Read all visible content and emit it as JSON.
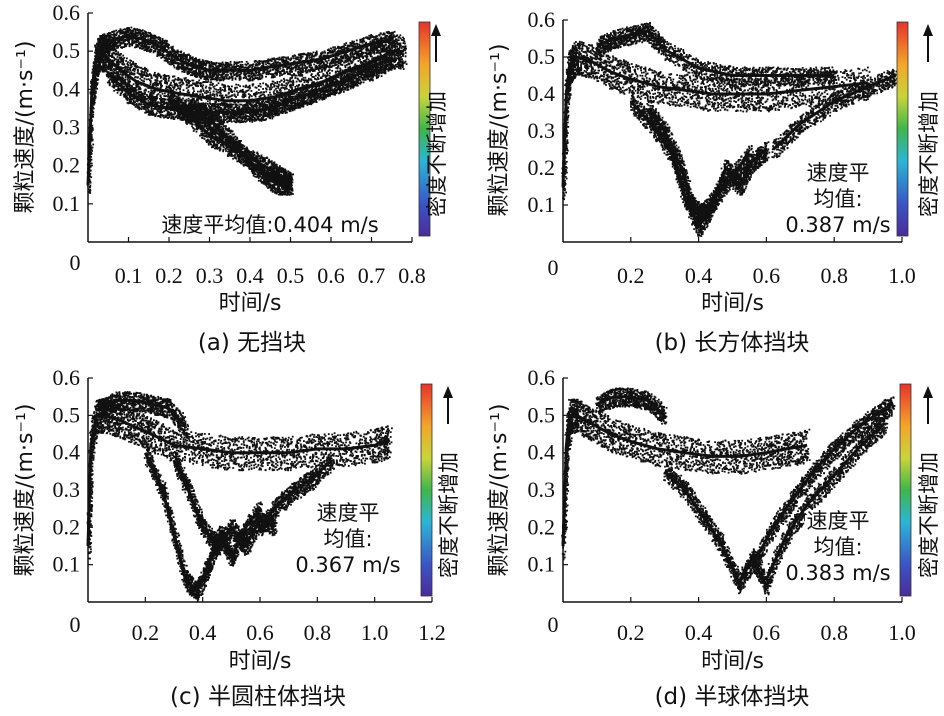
{
  "chart_data": [
    {
      "type": "scatter",
      "caption": "(a) 无挡块",
      "xlabel": "时间/s",
      "ylabel": "颗粒速度/(m·s⁻¹)",
      "xlim": [
        0,
        0.8
      ],
      "ylim": [
        0,
        0.6
      ],
      "xticks": [
        "0.1",
        "0.2",
        "0.3",
        "0.4",
        "0.5",
        "0.6",
        "0.7",
        "0.8"
      ],
      "yticks": [
        "0.1",
        "0.2",
        "0.3",
        "0.4",
        "0.5",
        "0.6"
      ],
      "origin_label": "0",
      "annotation": [
        "速度平均值:0.404 m/s"
      ],
      "colorbar_label": "密度不断增加",
      "series": [
        {
          "name": "main band",
          "x": [
            0.0,
            0.01,
            0.02,
            0.03,
            0.05,
            0.08,
            0.12,
            0.17,
            0.22,
            0.28,
            0.34,
            0.4,
            0.46,
            0.52,
            0.58,
            0.64,
            0.7,
            0.75,
            0.78
          ],
          "y": [
            0.15,
            0.4,
            0.48,
            0.5,
            0.48,
            0.45,
            0.42,
            0.4,
            0.39,
            0.38,
            0.37,
            0.37,
            0.38,
            0.4,
            0.42,
            0.45,
            0.47,
            0.5,
            0.5
          ]
        },
        {
          "name": "upper band",
          "x": [
            0.03,
            0.06,
            0.1,
            0.14,
            0.18,
            0.22,
            0.26,
            0.3,
            0.34,
            0.4,
            0.46,
            0.52,
            0.58,
            0.64,
            0.7,
            0.75
          ],
          "y": [
            0.52,
            0.53,
            0.54,
            0.53,
            0.51,
            0.48,
            0.46,
            0.45,
            0.45,
            0.45,
            0.46,
            0.47,
            0.48,
            0.5,
            0.52,
            0.53
          ]
        },
        {
          "name": "lower band",
          "x": [
            0.05,
            0.1,
            0.15,
            0.2,
            0.25,
            0.3,
            0.35,
            0.4,
            0.45,
            0.5,
            0.55,
            0.6,
            0.65,
            0.7,
            0.75
          ],
          "y": [
            0.44,
            0.39,
            0.36,
            0.35,
            0.34,
            0.34,
            0.34,
            0.34,
            0.35,
            0.37,
            0.39,
            0.41,
            0.43,
            0.46,
            0.48
          ]
        },
        {
          "name": "descending branch",
          "x": [
            0.2,
            0.25,
            0.3,
            0.35,
            0.4,
            0.45,
            0.48,
            0.5
          ],
          "y": [
            0.38,
            0.33,
            0.28,
            0.25,
            0.22,
            0.19,
            0.17,
            0.16
          ]
        },
        {
          "name": "descending branch 2",
          "x": [
            0.25,
            0.3,
            0.35,
            0.4,
            0.44,
            0.47,
            0.5
          ],
          "y": [
            0.36,
            0.32,
            0.27,
            0.21,
            0.17,
            0.15,
            0.15
          ]
        }
      ]
    },
    {
      "type": "scatter",
      "caption": "(b) 长方体挡块",
      "xlabel": "时间/s",
      "ylabel": "颗粒速度/(m·s⁻¹)",
      "xlim": [
        0,
        1.0
      ],
      "ylim": [
        0,
        0.6
      ],
      "xticks": [
        "0.2",
        "0.4",
        "0.6",
        "0.8",
        "1.0"
      ],
      "yticks": [
        "0.1",
        "0.2",
        "0.3",
        "0.4",
        "0.5",
        "0.6"
      ],
      "origin_label": "0",
      "annotation": [
        "速度平",
        "均值:",
        "0.387 m/s"
      ],
      "colorbar_label": "密度不断增加",
      "series": [
        {
          "name": "main band",
          "x": [
            0.0,
            0.01,
            0.02,
            0.04,
            0.08,
            0.14,
            0.2,
            0.28,
            0.36,
            0.44,
            0.52,
            0.6,
            0.7,
            0.8,
            0.9
          ],
          "y": [
            0.15,
            0.4,
            0.48,
            0.5,
            0.49,
            0.46,
            0.44,
            0.42,
            0.41,
            0.4,
            0.4,
            0.4,
            0.41,
            0.42,
            0.43
          ]
        },
        {
          "name": "upper band",
          "x": [
            0.1,
            0.15,
            0.2,
            0.25,
            0.3,
            0.4,
            0.5,
            0.6,
            0.7,
            0.8
          ],
          "y": [
            0.53,
            0.55,
            0.56,
            0.57,
            0.52,
            0.47,
            0.45,
            0.45,
            0.45,
            0.45
          ]
        },
        {
          "name": "dip branch",
          "x": [
            0.2,
            0.26,
            0.32,
            0.36,
            0.4,
            0.44,
            0.48,
            0.52,
            0.56,
            0.6
          ],
          "y": [
            0.38,
            0.32,
            0.24,
            0.12,
            0.04,
            0.1,
            0.2,
            0.15,
            0.22,
            0.25
          ]
        },
        {
          "name": "dip branch 2",
          "x": [
            0.25,
            0.3,
            0.35,
            0.38,
            0.41,
            0.45,
            0.5,
            0.55
          ],
          "y": [
            0.36,
            0.3,
            0.2,
            0.1,
            0.08,
            0.12,
            0.18,
            0.24
          ]
        },
        {
          "name": "late rise",
          "x": [
            0.62,
            0.7,
            0.8,
            0.9,
            0.98
          ],
          "y": [
            0.25,
            0.32,
            0.38,
            0.42,
            0.45
          ]
        }
      ]
    },
    {
      "type": "scatter",
      "caption": "(c) 半圆柱体挡块",
      "xlabel": "时间/s",
      "ylabel": "颗粒速度/(m·s⁻¹)",
      "xlim": [
        0,
        1.2
      ],
      "ylim": [
        0,
        0.6
      ],
      "xticks": [
        "0.2",
        "0.4",
        "0.6",
        "0.8",
        "1.0",
        "1.2"
      ],
      "yticks": [
        "0.1",
        "0.2",
        "0.3",
        "0.4",
        "0.5",
        "0.6"
      ],
      "origin_label": "0",
      "annotation": [
        "速度平",
        "均值:",
        "0.367 m/s"
      ],
      "colorbar_label": "密度不断增加",
      "series": [
        {
          "name": "main band",
          "x": [
            0.0,
            0.01,
            0.03,
            0.06,
            0.1,
            0.16,
            0.22,
            0.3,
            0.4,
            0.5,
            0.6,
            0.7,
            0.8,
            0.9,
            1.0,
            1.05
          ],
          "y": [
            0.15,
            0.42,
            0.5,
            0.5,
            0.49,
            0.47,
            0.45,
            0.42,
            0.41,
            0.4,
            0.4,
            0.4,
            0.41,
            0.41,
            0.42,
            0.43
          ]
        },
        {
          "name": "upper band",
          "x": [
            0.04,
            0.1,
            0.16,
            0.22,
            0.28,
            0.34
          ],
          "y": [
            0.52,
            0.54,
            0.54,
            0.53,
            0.52,
            0.47
          ]
        },
        {
          "name": "dip branch",
          "x": [
            0.2,
            0.26,
            0.3,
            0.34,
            0.38,
            0.42,
            0.46,
            0.5,
            0.55,
            0.6
          ],
          "y": [
            0.4,
            0.3,
            0.18,
            0.06,
            0.03,
            0.1,
            0.18,
            0.12,
            0.2,
            0.25
          ]
        },
        {
          "name": "dip branch 2",
          "x": [
            0.3,
            0.35,
            0.4,
            0.45,
            0.5,
            0.55,
            0.6,
            0.65
          ],
          "y": [
            0.38,
            0.3,
            0.2,
            0.15,
            0.2,
            0.15,
            0.22,
            0.2
          ]
        },
        {
          "name": "late rise",
          "x": [
            0.6,
            0.66,
            0.72,
            0.78,
            0.85
          ],
          "y": [
            0.2,
            0.26,
            0.3,
            0.33,
            0.38
          ]
        }
      ]
    },
    {
      "type": "scatter",
      "caption": "(d) 半球体挡块",
      "xlabel": "时间/s",
      "ylabel": "颗粒速度/(m·s⁻¹)",
      "xlim": [
        0,
        1.0
      ],
      "ylim": [
        0,
        0.6
      ],
      "xticks": [
        "0.2",
        "0.4",
        "0.6",
        "0.8",
        "1.0"
      ],
      "yticks": [
        "0.1",
        "0.2",
        "0.3",
        "0.4",
        "0.5",
        "0.6"
      ],
      "origin_label": "0",
      "annotation": [
        "速度平",
        "均值:",
        "0.383 m/s"
      ],
      "colorbar_label": "密度不断增加",
      "series": [
        {
          "name": "main band",
          "x": [
            0.0,
            0.01,
            0.02,
            0.04,
            0.08,
            0.14,
            0.2,
            0.28,
            0.36,
            0.44,
            0.52,
            0.6,
            0.66,
            0.72
          ],
          "y": [
            0.15,
            0.42,
            0.5,
            0.5,
            0.48,
            0.45,
            0.43,
            0.41,
            0.4,
            0.39,
            0.39,
            0.4,
            0.41,
            0.42
          ]
        },
        {
          "name": "upper band",
          "x": [
            0.1,
            0.15,
            0.2,
            0.25,
            0.3
          ],
          "y": [
            0.53,
            0.55,
            0.55,
            0.54,
            0.5
          ]
        },
        {
          "name": "dip branch",
          "x": [
            0.3,
            0.36,
            0.42,
            0.47,
            0.52,
            0.56,
            0.6
          ],
          "y": [
            0.35,
            0.3,
            0.22,
            0.15,
            0.05,
            0.12,
            0.04
          ]
        },
        {
          "name": "rise branch 1",
          "x": [
            0.56,
            0.62,
            0.68,
            0.74,
            0.8,
            0.86,
            0.92,
            0.97
          ],
          "y": [
            0.1,
            0.2,
            0.28,
            0.35,
            0.41,
            0.46,
            0.5,
            0.53
          ]
        },
        {
          "name": "rise branch 2",
          "x": [
            0.6,
            0.66,
            0.72,
            0.8,
            0.88,
            0.95
          ],
          "y": [
            0.06,
            0.18,
            0.26,
            0.34,
            0.42,
            0.48
          ]
        }
      ]
    }
  ]
}
